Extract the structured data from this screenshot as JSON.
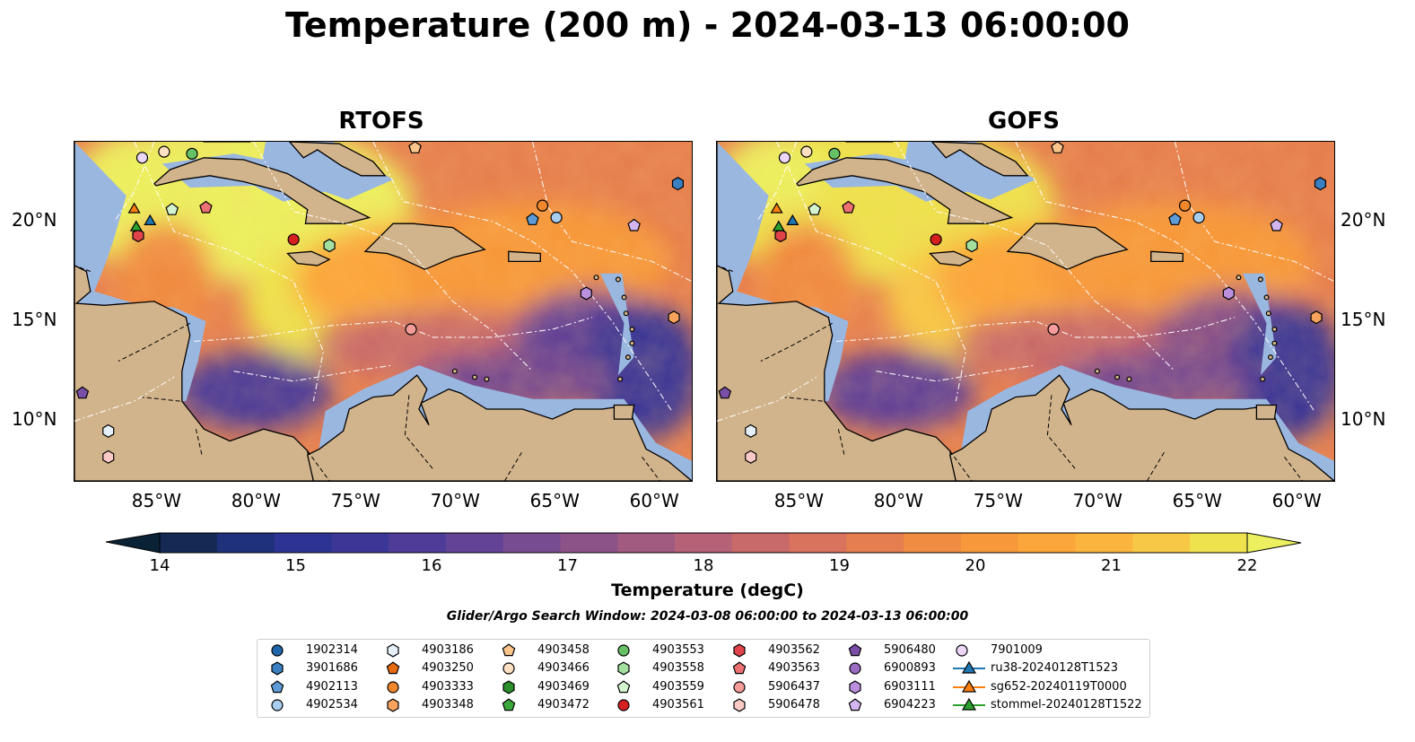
{
  "title": "Temperature (200 m) - 2024-03-13 06:00:00",
  "panels": [
    {
      "title": "RTOFS",
      "model": "RTOFS"
    },
    {
      "title": "GOFS",
      "model": "GOFS"
    }
  ],
  "axes": {
    "x_ticks": [
      "85°W",
      "80°W",
      "75°W",
      "70°W",
      "65°W",
      "60°W"
    ],
    "x_tick_values": [
      -85,
      -80,
      -75,
      -70,
      -65,
      -60
    ],
    "y_ticks": [
      "20°N",
      "15°N",
      "10°N"
    ],
    "y_tick_values": [
      20,
      15,
      10
    ],
    "lon_range": [
      -89,
      -58
    ],
    "lat_range": [
      7,
      24
    ]
  },
  "colorbar": {
    "label": "Temperature (degC)",
    "ticks": [
      "14",
      "15",
      "16",
      "17",
      "18",
      "19",
      "20",
      "21",
      "22"
    ],
    "tick_values": [
      14,
      15,
      16,
      17,
      18,
      19,
      20,
      21,
      22
    ],
    "range": [
      14,
      22
    ],
    "step": 0.5,
    "extend": "both",
    "colors": [
      "#0a2236",
      "#142a55",
      "#1e317a",
      "#2c3392",
      "#3c3796",
      "#4f3c98",
      "#634396",
      "#784c90",
      "#8b5388",
      "#a15b80",
      "#b66276",
      "#c96a6a",
      "#d9735e",
      "#e67f4f",
      "#f08b42",
      "#f7993a",
      "#fba63a",
      "#fbb53f",
      "#f7c846",
      "#eee24d",
      "#ecf05e"
    ]
  },
  "search_window": "Glider/Argo Search Window: 2024-03-08 06:00:00 to 2024-03-13 06:00:00",
  "colors": {
    "land": "#d2b48c",
    "shelf": "#9ab7e0",
    "deep": "#0a2236",
    "eez": "#ffffff"
  },
  "legend": [
    {
      "label": "1902314",
      "marker": "circle",
      "color": "#1f66aa"
    },
    {
      "label": "3901686",
      "marker": "hexagon",
      "color": "#3a7fc1"
    },
    {
      "label": "4902113",
      "marker": "pentagon",
      "color": "#5d9bd6"
    },
    {
      "label": "4902534",
      "marker": "circle",
      "color": "#a9cdee"
    },
    {
      "label": "4903186",
      "marker": "hexagon",
      "color": "#e6f0fb"
    },
    {
      "label": "4903250",
      "marker": "pentagon",
      "color": "#e66a10"
    },
    {
      "label": "4903333",
      "marker": "circle",
      "color": "#f0882b"
    },
    {
      "label": "4903348",
      "marker": "hexagon",
      "color": "#f7a35c"
    },
    {
      "label": "4903458",
      "marker": "pentagon",
      "color": "#fbc48a"
    },
    {
      "label": "4903466",
      "marker": "circle",
      "color": "#fde0c2"
    },
    {
      "label": "4903469",
      "marker": "hexagon",
      "color": "#2a8f2a"
    },
    {
      "label": "4903472",
      "marker": "pentagon",
      "color": "#3aa83a"
    },
    {
      "label": "4903553",
      "marker": "circle",
      "color": "#66c166"
    },
    {
      "label": "4903558",
      "marker": "hexagon",
      "color": "#a3e0a0"
    },
    {
      "label": "4903559",
      "marker": "pentagon",
      "color": "#d4f3cf"
    },
    {
      "label": "4903561",
      "marker": "circle",
      "color": "#d62020"
    },
    {
      "label": "4903562",
      "marker": "hexagon",
      "color": "#e0444a"
    },
    {
      "label": "4903563",
      "marker": "pentagon",
      "color": "#ec6f72"
    },
    {
      "label": "5906437",
      "marker": "circle",
      "color": "#f59c9a"
    },
    {
      "label": "5906478",
      "marker": "hexagon",
      "color": "#fccac6"
    },
    {
      "label": "5906480",
      "marker": "pentagon",
      "color": "#7a4ea6"
    },
    {
      "label": "6900893",
      "marker": "circle",
      "color": "#9a6cc4"
    },
    {
      "label": "6903111",
      "marker": "hexagon",
      "color": "#b98fde"
    },
    {
      "label": "6904223",
      "marker": "pentagon",
      "color": "#d3b6f0"
    },
    {
      "label": "7901009",
      "marker": "circle",
      "color": "#ecd6fa"
    },
    {
      "label": "ru38-20240128T1523",
      "marker": "triangle-line",
      "color": "#1f77b4"
    },
    {
      "label": "sg652-20240119T0000",
      "marker": "triangle-line",
      "color": "#ff7f0e"
    },
    {
      "label": "stommel-20240128T1522",
      "marker": "triangle-line",
      "color": "#2ca02c"
    }
  ],
  "observations": [
    {
      "id": "3901686",
      "lon": -58.7,
      "lat": 21.9
    },
    {
      "id": "4903466",
      "lon": -84.5,
      "lat": 23.5
    },
    {
      "id": "7901009",
      "lon": -85.6,
      "lat": 23.2
    },
    {
      "id": "4903553",
      "lon": -83.1,
      "lat": 23.4
    },
    {
      "id": "4903458",
      "lon": -71.9,
      "lat": 23.7
    },
    {
      "id": "4903333",
      "lon": -65.5,
      "lat": 20.8
    },
    {
      "id": "4902534",
      "lon": -64.8,
      "lat": 20.2
    },
    {
      "id": "4902113",
      "lon": -66.0,
      "lat": 20.1
    },
    {
      "id": "4903563",
      "lon": -82.4,
      "lat": 20.7
    },
    {
      "id": "4903559",
      "lon": -84.1,
      "lat": 20.6
    },
    {
      "id": "6904223",
      "lon": -60.9,
      "lat": 19.8
    },
    {
      "id": "4903561",
      "lon": -78.0,
      "lat": 19.1
    },
    {
      "id": "4903558",
      "lon": -76.2,
      "lat": 18.8
    },
    {
      "id": "4903562",
      "lon": -85.8,
      "lat": 19.3
    },
    {
      "id": "6903111",
      "lon": -63.3,
      "lat": 16.4
    },
    {
      "id": "4903348",
      "lon": -58.9,
      "lat": 15.2
    },
    {
      "id": "5906437",
      "lon": -72.1,
      "lat": 14.6
    },
    {
      "id": "5906480",
      "lon": -88.6,
      "lat": 11.4
    },
    {
      "id": "4903186",
      "lon": -87.3,
      "lat": 9.5
    },
    {
      "id": "5906478",
      "lon": -87.3,
      "lat": 8.2
    },
    {
      "id": "sg652-20240119T0000",
      "lon": -86.0,
      "lat": 20.6
    },
    {
      "id": "ru38-20240128T1523",
      "lon": -85.2,
      "lat": 20.0
    },
    {
      "id": "stommel-20240128T1522",
      "lon": -85.9,
      "lat": 19.7
    }
  ]
}
